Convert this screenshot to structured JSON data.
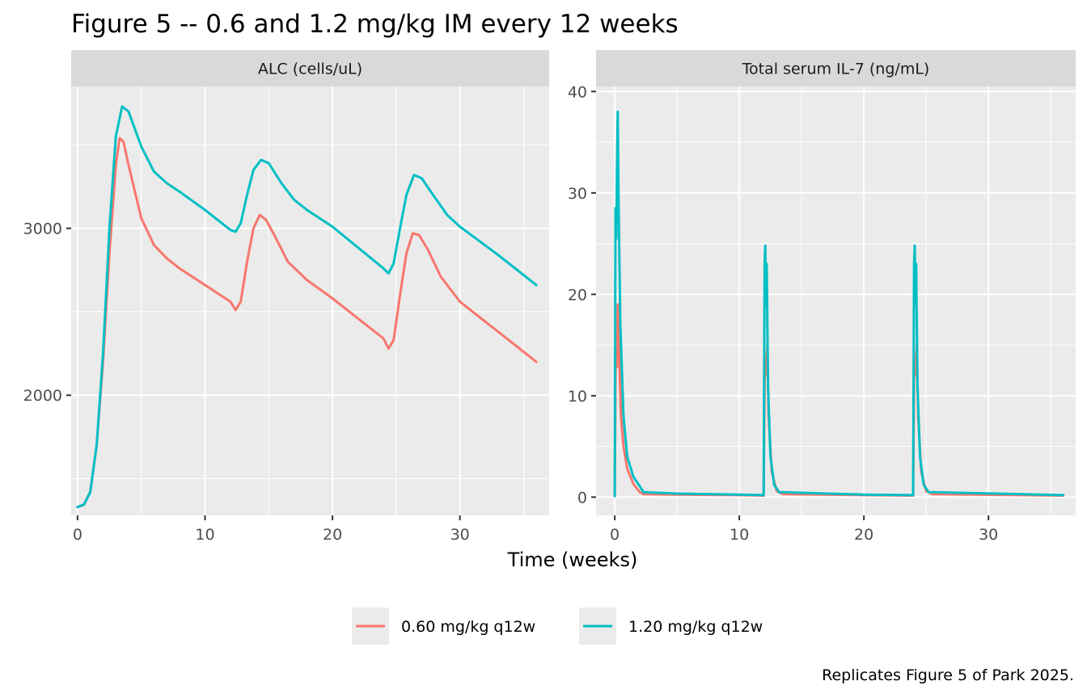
{
  "chart_data": {
    "type": "line",
    "title": "Figure 5 -- 0.6 and 1.2 mg/kg IM every 12 weeks",
    "xlabel": "Time (weeks)",
    "caption": "Replicates Figure 5 of Park 2025.",
    "legend_position": "bottom",
    "grid": true,
    "series_colors": [
      "#F8766D",
      "#00BFC4"
    ],
    "legend": [
      "0.60 mg/kg q12w",
      "1.20 mg/kg q12w"
    ],
    "panels": [
      {
        "strip": "ALC (cells/uL)",
        "xlim": [
          -0.5,
          37
        ],
        "ylim": [
          1280,
          3850
        ],
        "x_ticks": [
          0,
          10,
          20,
          30
        ],
        "x_tick_labels": [
          "0",
          "10",
          "20",
          "30"
        ],
        "y_ticks": [
          2000,
          3000
        ],
        "y_tick_labels": [
          "2000",
          "3000"
        ],
        "y_minor": [
          1500,
          2500,
          3500
        ],
        "series": [
          {
            "points": [
              [
                0,
                1330
              ],
              [
                0.5,
                1345
              ],
              [
                1,
                1420
              ],
              [
                1.5,
                1700
              ],
              [
                2,
                2200
              ],
              [
                2.5,
                2850
              ],
              [
                3,
                3380
              ],
              [
                3.3,
                3540
              ],
              [
                3.6,
                3520
              ],
              [
                4,
                3380
              ],
              [
                5,
                3060
              ],
              [
                6,
                2900
              ],
              [
                7,
                2820
              ],
              [
                8,
                2760
              ],
              [
                10,
                2660
              ],
              [
                12,
                2560
              ],
              [
                12.4,
                2510
              ],
              [
                12.8,
                2560
              ],
              [
                13.3,
                2800
              ],
              [
                13.8,
                3000
              ],
              [
                14.3,
                3080
              ],
              [
                14.8,
                3050
              ],
              [
                15.5,
                2950
              ],
              [
                16.5,
                2800
              ],
              [
                18,
                2690
              ],
              [
                20,
                2580
              ],
              [
                24,
                2340
              ],
              [
                24.4,
                2280
              ],
              [
                24.8,
                2330
              ],
              [
                25.3,
                2600
              ],
              [
                25.8,
                2850
              ],
              [
                26.3,
                2970
              ],
              [
                26.8,
                2960
              ],
              [
                27.5,
                2870
              ],
              [
                28.5,
                2710
              ],
              [
                30,
                2560
              ],
              [
                33,
                2380
              ],
              [
                36,
                2200
              ]
            ]
          },
          {
            "points": [
              [
                0,
                1330
              ],
              [
                0.5,
                1345
              ],
              [
                1,
                1420
              ],
              [
                1.5,
                1700
              ],
              [
                2,
                2250
              ],
              [
                2.5,
                3000
              ],
              [
                3,
                3550
              ],
              [
                3.5,
                3730
              ],
              [
                4,
                3700
              ],
              [
                5,
                3490
              ],
              [
                6,
                3340
              ],
              [
                7,
                3270
              ],
              [
                8,
                3220
              ],
              [
                10,
                3110
              ],
              [
                12,
                2990
              ],
              [
                12.4,
                2980
              ],
              [
                12.8,
                3030
              ],
              [
                13.3,
                3200
              ],
              [
                13.8,
                3350
              ],
              [
                14.4,
                3410
              ],
              [
                15,
                3390
              ],
              [
                16,
                3270
              ],
              [
                17,
                3170
              ],
              [
                18,
                3110
              ],
              [
                20,
                3010
              ],
              [
                24,
                2760
              ],
              [
                24.4,
                2730
              ],
              [
                24.8,
                2790
              ],
              [
                25.3,
                3000
              ],
              [
                25.8,
                3200
              ],
              [
                26.4,
                3320
              ],
              [
                27,
                3300
              ],
              [
                27.8,
                3210
              ],
              [
                29,
                3080
              ],
              [
                30,
                3010
              ],
              [
                33,
                2840
              ],
              [
                36,
                2660
              ]
            ]
          }
        ]
      },
      {
        "strip": "Total serum IL-7 (ng/mL)",
        "xlim": [
          -1.5,
          37
        ],
        "ylim": [
          -1.8,
          40.5
        ],
        "x_ticks": [
          0,
          10,
          20,
          30
        ],
        "x_tick_labels": [
          "0",
          "10",
          "20",
          "30"
        ],
        "y_ticks": [
          0,
          10,
          20,
          30,
          40
        ],
        "y_tick_labels": [
          "0",
          "10",
          "20",
          "30",
          "40"
        ],
        "y_minor": [
          5,
          15,
          25,
          35
        ],
        "series": [
          {
            "points": [
              [
                0,
                0.1
              ],
              [
                0.08,
                14
              ],
              [
                0.16,
                12.8
              ],
              [
                0.24,
                19
              ],
              [
                0.3,
                16
              ],
              [
                0.5,
                8
              ],
              [
                0.7,
                5
              ],
              [
                1,
                2.8
              ],
              [
                1.5,
                1.3
              ],
              [
                2,
                0.5
              ],
              [
                2.3,
                0.3
              ],
              [
                5,
                0.25
              ],
              [
                10,
                0.2
              ],
              [
                11.95,
                0.15
              ],
              [
                12.05,
                14
              ],
              [
                12.15,
                12
              ],
              [
                12.25,
                15
              ],
              [
                12.35,
                8
              ],
              [
                12.6,
                2.5
              ],
              [
                13,
                0.6
              ],
              [
                13.5,
                0.3
              ],
              [
                20,
                0.2
              ],
              [
                23.95,
                0.15
              ],
              [
                24.05,
                14
              ],
              [
                24.15,
                12
              ],
              [
                24.25,
                15
              ],
              [
                24.35,
                8
              ],
              [
                24.6,
                2.5
              ],
              [
                25,
                0.6
              ],
              [
                25.5,
                0.3
              ],
              [
                36,
                0.15
              ]
            ]
          },
          {
            "points": [
              [
                0,
                0.1
              ],
              [
                0.06,
                28.5
              ],
              [
                0.12,
                25.5
              ],
              [
                0.18,
                33
              ],
              [
                0.24,
                38
              ],
              [
                0.3,
                30
              ],
              [
                0.45,
                17
              ],
              [
                0.7,
                8
              ],
              [
                1,
                4
              ],
              [
                1.5,
                2
              ],
              [
                2,
                1.1
              ],
              [
                2.3,
                0.5
              ],
              [
                5,
                0.35
              ],
              [
                10,
                0.25
              ],
              [
                11.95,
                0.2
              ],
              [
                12.03,
                23
              ],
              [
                12.08,
                24.8
              ],
              [
                12.14,
                19
              ],
              [
                12.2,
                23
              ],
              [
                12.3,
                11
              ],
              [
                12.5,
                4
              ],
              [
                12.8,
                1.2
              ],
              [
                13.2,
                0.5
              ],
              [
                20,
                0.25
              ],
              [
                23.95,
                0.2
              ],
              [
                24.03,
                23
              ],
              [
                24.08,
                24.8
              ],
              [
                24.14,
                19
              ],
              [
                24.2,
                23
              ],
              [
                24.3,
                11
              ],
              [
                24.5,
                4
              ],
              [
                24.8,
                1.2
              ],
              [
                25.2,
                0.5
              ],
              [
                36,
                0.2
              ]
            ]
          }
        ]
      }
    ]
  }
}
